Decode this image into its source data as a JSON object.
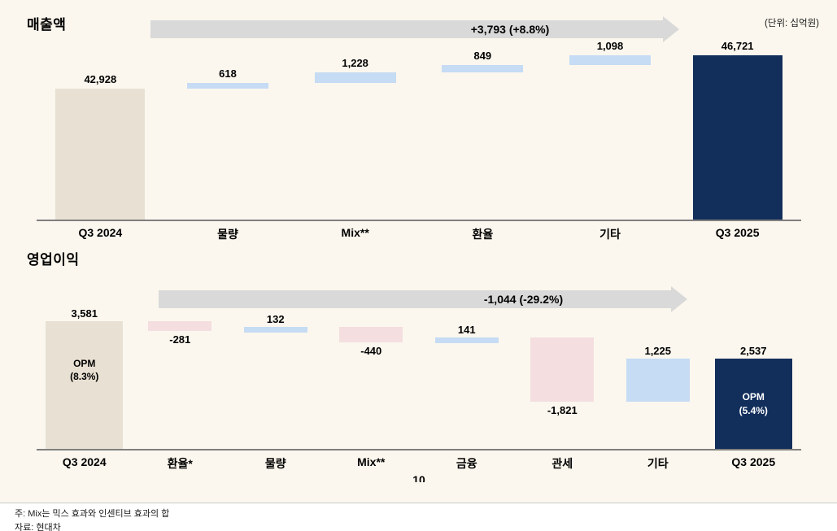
{
  "meta": {
    "unit_label": "(단위: 십억원)",
    "page_number": "10"
  },
  "footer": {
    "note1": "주: Mix는 믹스 효과와 인센티브 효과의 합",
    "note2": "자료: 현대차"
  },
  "colors": {
    "background": "#FBF7EE",
    "beige": "#E8E1D3",
    "navy": "#122E5B",
    "blue": "#C6DBF4",
    "pink": "#F4DEDF",
    "arrow": "#D9D9D9",
    "axis": "#7F7F7F"
  },
  "chart_data": [
    {
      "type": "waterfall",
      "title": "매출액",
      "arrow_label": "+3,793 (+8.8%)",
      "axis_min": 28000,
      "legend": "none",
      "bars": [
        {
          "label": "Q3 2024",
          "value": 42928,
          "display": "42,928",
          "kind": "total",
          "color": "beige",
          "value_pos": "above"
        },
        {
          "label": "물량",
          "value": 618,
          "display": "618",
          "kind": "delta",
          "color": "blue",
          "value_pos": "above"
        },
        {
          "label": "Mix**",
          "value": 1228,
          "display": "1,228",
          "kind": "delta",
          "color": "blue",
          "value_pos": "above"
        },
        {
          "label": "환율",
          "value": 849,
          "display": "849",
          "kind": "delta",
          "color": "blue",
          "value_pos": "above"
        },
        {
          "label": "기타",
          "value": 1098,
          "display": "1,098",
          "kind": "delta",
          "color": "blue",
          "value_pos": "above"
        },
        {
          "label": "Q3 2025",
          "value": 46721,
          "display": "46,721",
          "kind": "total",
          "color": "navy",
          "value_pos": "above"
        }
      ]
    },
    {
      "type": "waterfall",
      "title": "영업이익",
      "arrow_label": "-1,044 (-29.2%)",
      "axis_min": 0,
      "legend": "none",
      "bars": [
        {
          "label": "Q3 2024",
          "value": 3581,
          "display": "3,581",
          "kind": "total",
          "color": "beige",
          "value_pos": "above",
          "inner_label": "OPM\n(8.3%)"
        },
        {
          "label": "환율*",
          "value": -281,
          "display": "-281",
          "kind": "delta",
          "color": "pink",
          "value_pos": "below"
        },
        {
          "label": "물량",
          "value": 132,
          "display": "132",
          "kind": "delta",
          "color": "blue",
          "value_pos": "above"
        },
        {
          "label": "Mix**",
          "value": -440,
          "display": "-440",
          "kind": "delta",
          "color": "pink",
          "value_pos": "below"
        },
        {
          "label": "금융",
          "value": 141,
          "display": "141",
          "kind": "delta",
          "color": "blue",
          "value_pos": "above"
        },
        {
          "label": "관세",
          "value": -1821,
          "display": "-1,821",
          "kind": "delta",
          "color": "pink",
          "value_pos": "below"
        },
        {
          "label": "기타",
          "value": 1225,
          "display": "1,225",
          "kind": "delta",
          "color": "blue",
          "value_pos": "above"
        },
        {
          "label": "Q3 2025",
          "value": 2537,
          "display": "2,537",
          "kind": "total",
          "color": "navy",
          "value_pos": "above",
          "inner_label": "OPM\n(5.4%)"
        }
      ]
    }
  ]
}
